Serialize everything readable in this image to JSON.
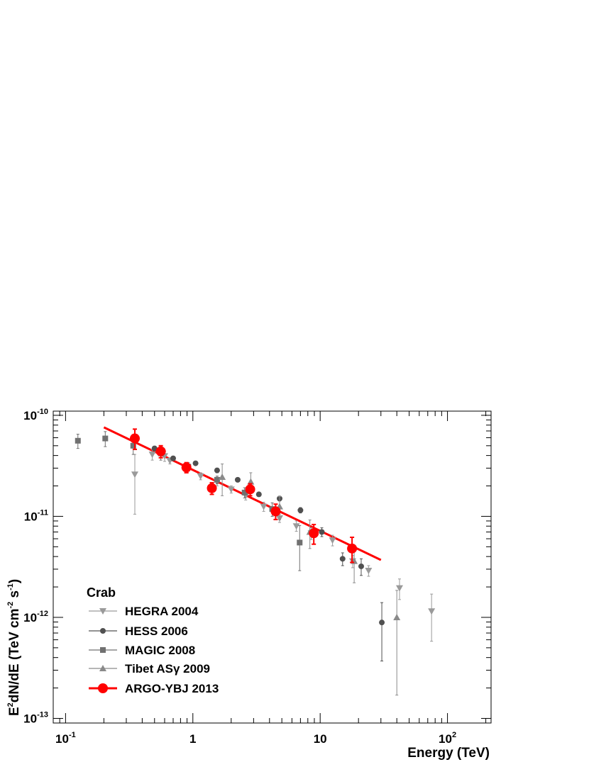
{
  "chart_data": {
    "type": "scatter",
    "x_scale": "log",
    "y_scale": "log",
    "xlim": [
      0.08,
      220
    ],
    "ylim": [
      9e-14,
      1.1e-10
    ],
    "xlabel": "Energy (TeV)",
    "ylabel": {
      "prefix": "E",
      "sup1": "2",
      "middle": "dN/dE (TeV cm",
      "sup2": "-2",
      "middle2": " s",
      "sup3": "-1",
      "suffix": ")"
    },
    "x_ticks": [
      {
        "value": 0.1,
        "base": "10",
        "exp": "-1"
      },
      {
        "value": 1,
        "base": "1",
        "exp": ""
      },
      {
        "value": 10,
        "base": "10",
        "exp": ""
      },
      {
        "value": 100,
        "base": "10",
        "exp": "2"
      }
    ],
    "y_ticks": [
      {
        "value": 1e-10,
        "base": "10",
        "exp": "-10"
      },
      {
        "value": 1e-11,
        "base": "10",
        "exp": "-11"
      },
      {
        "value": 1e-12,
        "base": "10",
        "exp": "-12"
      },
      {
        "value": 1e-13,
        "base": "10",
        "exp": "-13"
      }
    ],
    "legend": {
      "title": "Crab",
      "position": "bottom-left"
    },
    "series": [
      {
        "name": "HEGRA 2004",
        "marker": "triangle-down",
        "color": "#9a9a9a",
        "points": [
          {
            "x": 0.35,
            "y": 2.6e-11,
            "ylo": 1.05e-11,
            "yhi": 4.1e-11
          },
          {
            "x": 0.48,
            "y": 4.1e-11,
            "ylo": 3.6e-11,
            "yhi": 4.6e-11
          },
          {
            "x": 0.6,
            "y": 3.95e-11,
            "ylo": 3.5e-11,
            "yhi": 4.4e-11
          },
          {
            "x": 0.66,
            "y": 3.55e-11,
            "ylo": 3.3e-11,
            "yhi": 3.8e-11
          },
          {
            "x": 1.15,
            "y": 2.5e-11,
            "ylo": 2.3e-11,
            "yhi": 2.7e-11
          },
          {
            "x": 1.55,
            "y": 2.2e-11,
            "ylo": 2e-11,
            "yhi": 2.4e-11
          },
          {
            "x": 2.0,
            "y": 1.85e-11,
            "ylo": 1.7e-11,
            "yhi": 2e-11
          },
          {
            "x": 2.6,
            "y": 1.6e-11,
            "ylo": 1.45e-11,
            "yhi": 1.75e-11
          },
          {
            "x": 3.6,
            "y": 1.25e-11,
            "ylo": 1.12e-11,
            "yhi": 1.38e-11
          },
          {
            "x": 4.8,
            "y": 9.6e-12,
            "ylo": 8.7e-12,
            "yhi": 1.05e-11
          },
          {
            "x": 6.5,
            "y": 8e-12,
            "ylo": 7.1e-12,
            "yhi": 9e-12
          },
          {
            "x": 8.5,
            "y": 6.8e-12,
            "ylo": 5.9e-12,
            "yhi": 7.7e-12
          },
          {
            "x": 12.5,
            "y": 5.8e-12,
            "ylo": 5.1e-12,
            "yhi": 6.5e-12
          },
          {
            "x": 18.0,
            "y": 3.6e-12,
            "ylo": 3.1e-12,
            "yhi": 4.1e-12
          },
          {
            "x": 24.0,
            "y": 2.9e-12,
            "ylo": 2.55e-12,
            "yhi": 3.25e-12
          },
          {
            "x": 42.0,
            "y": 1.95e-12,
            "ylo": 1.5e-12,
            "yhi": 2.4e-12
          },
          {
            "x": 75.0,
            "y": 1.15e-12,
            "ylo": 5.8e-13,
            "yhi": 1.7e-12
          }
        ]
      },
      {
        "name": "HESS 2006",
        "marker": "circle",
        "color": "#505050",
        "points": [
          {
            "x": 0.5,
            "y": 4.7e-11,
            "ylo": 4.45e-11,
            "yhi": 4.95e-11
          },
          {
            "x": 0.7,
            "y": 3.75e-11,
            "ylo": 3.6e-11,
            "yhi": 3.9e-11
          },
          {
            "x": 1.05,
            "y": 3.35e-11,
            "ylo": 3.2e-11,
            "yhi": 3.5e-11
          },
          {
            "x": 1.55,
            "y": 2.85e-11,
            "ylo": 2.7e-11,
            "yhi": 3e-11
          },
          {
            "x": 2.25,
            "y": 2.3e-11,
            "ylo": 2.2e-11,
            "yhi": 2.4e-11
          },
          {
            "x": 3.3,
            "y": 1.65e-11,
            "ylo": 1.57e-11,
            "yhi": 1.73e-11
          },
          {
            "x": 4.8,
            "y": 1.5e-11,
            "ylo": 1.42e-11,
            "yhi": 1.58e-11
          },
          {
            "x": 7.0,
            "y": 1.15e-11,
            "ylo": 1.08e-11,
            "yhi": 1.22e-11
          },
          {
            "x": 10.3,
            "y": 7e-12,
            "ylo": 6.3e-12,
            "yhi": 7.7e-12
          },
          {
            "x": 15.0,
            "y": 3.8e-12,
            "ylo": 3.25e-12,
            "yhi": 4.35e-12
          },
          {
            "x": 21.0,
            "y": 3.2e-12,
            "ylo": 2.6e-12,
            "yhi": 3.8e-12
          },
          {
            "x": 30.5,
            "y": 8.9e-13,
            "ylo": 3.7e-13,
            "yhi": 1.4e-12
          }
        ]
      },
      {
        "name": "MAGIC 2008",
        "marker": "square",
        "color": "#707070",
        "points": [
          {
            "x": 0.125,
            "y": 5.6e-11,
            "ylo": 4.7e-11,
            "yhi": 6.5e-11
          },
          {
            "x": 0.205,
            "y": 5.9e-11,
            "ylo": 4.9e-11,
            "yhi": 6.9e-11
          },
          {
            "x": 0.34,
            "y": 5e-11,
            "ylo": 4.1e-11,
            "yhi": 5.9e-11
          },
          {
            "x": 0.56,
            "y": 4.2e-11,
            "ylo": 3.6e-11,
            "yhi": 4.8e-11
          },
          {
            "x": 0.92,
            "y": 3.1e-11,
            "ylo": 2.8e-11,
            "yhi": 3.4e-11
          },
          {
            "x": 1.55,
            "y": 2.3e-11,
            "ylo": 2.1e-11,
            "yhi": 2.5e-11
          },
          {
            "x": 2.55,
            "y": 1.72e-11,
            "ylo": 1.52e-11,
            "yhi": 1.92e-11
          },
          {
            "x": 4.2,
            "y": 1.18e-11,
            "ylo": 1e-11,
            "yhi": 1.36e-11
          },
          {
            "x": 6.9,
            "y": 5.5e-12,
            "ylo": 2.9e-12,
            "yhi": 8.1e-12
          }
        ]
      },
      {
        "name": "Tibet ASγ 2009",
        "marker": "triangle-up",
        "color": "#8a8a8a",
        "points": [
          {
            "x": 1.7,
            "y": 2.45e-11,
            "ylo": 1.6e-11,
            "yhi": 3.3e-11
          },
          {
            "x": 2.85,
            "y": 2.2e-11,
            "ylo": 1.7e-11,
            "yhi": 2.7e-11
          },
          {
            "x": 4.8,
            "y": 1.25e-11,
            "ylo": 9.3e-12,
            "yhi": 1.57e-11
          },
          {
            "x": 8.3,
            "y": 7e-12,
            "ylo": 4.8e-12,
            "yhi": 9.2e-12
          },
          {
            "x": 18.5,
            "y": 3.6e-12,
            "ylo": 2.2e-12,
            "yhi": 5e-12
          },
          {
            "x": 40.0,
            "y": 1e-12,
            "ylo": 1.7e-13,
            "yhi": 1.85e-12
          }
        ]
      },
      {
        "name": "ARGO-YBJ 2013",
        "marker": "circle-large",
        "color": "#ff0000",
        "points": [
          {
            "x": 0.35,
            "y": 5.9e-11,
            "ylo": 4.6e-11,
            "yhi": 7.3e-11
          },
          {
            "x": 0.56,
            "y": 4.4e-11,
            "ylo": 3.8e-11,
            "yhi": 5e-11
          },
          {
            "x": 0.89,
            "y": 3.05e-11,
            "ylo": 2.7e-11,
            "yhi": 3.4e-11
          },
          {
            "x": 1.41,
            "y": 1.9e-11,
            "ylo": 1.65e-11,
            "yhi": 2.15e-11
          },
          {
            "x": 2.82,
            "y": 1.85e-11,
            "ylo": 1.6e-11,
            "yhi": 2.1e-11
          },
          {
            "x": 4.47,
            "y": 1.12e-11,
            "ylo": 9.3e-12,
            "yhi": 1.32e-11
          },
          {
            "x": 8.91,
            "y": 6.8e-12,
            "ylo": 5.3e-12,
            "yhi": 8.3e-12
          },
          {
            "x": 17.8,
            "y": 4.8e-12,
            "ylo": 3.5e-12,
            "yhi": 6.2e-12
          }
        ]
      }
    ],
    "fit_line": {
      "series": "ARGO-YBJ 2013",
      "color": "#ff0000",
      "points": [
        {
          "x": 0.2,
          "y": 7.6e-11
        },
        {
          "x": 30.0,
          "y": 3.7e-12
        }
      ]
    }
  }
}
